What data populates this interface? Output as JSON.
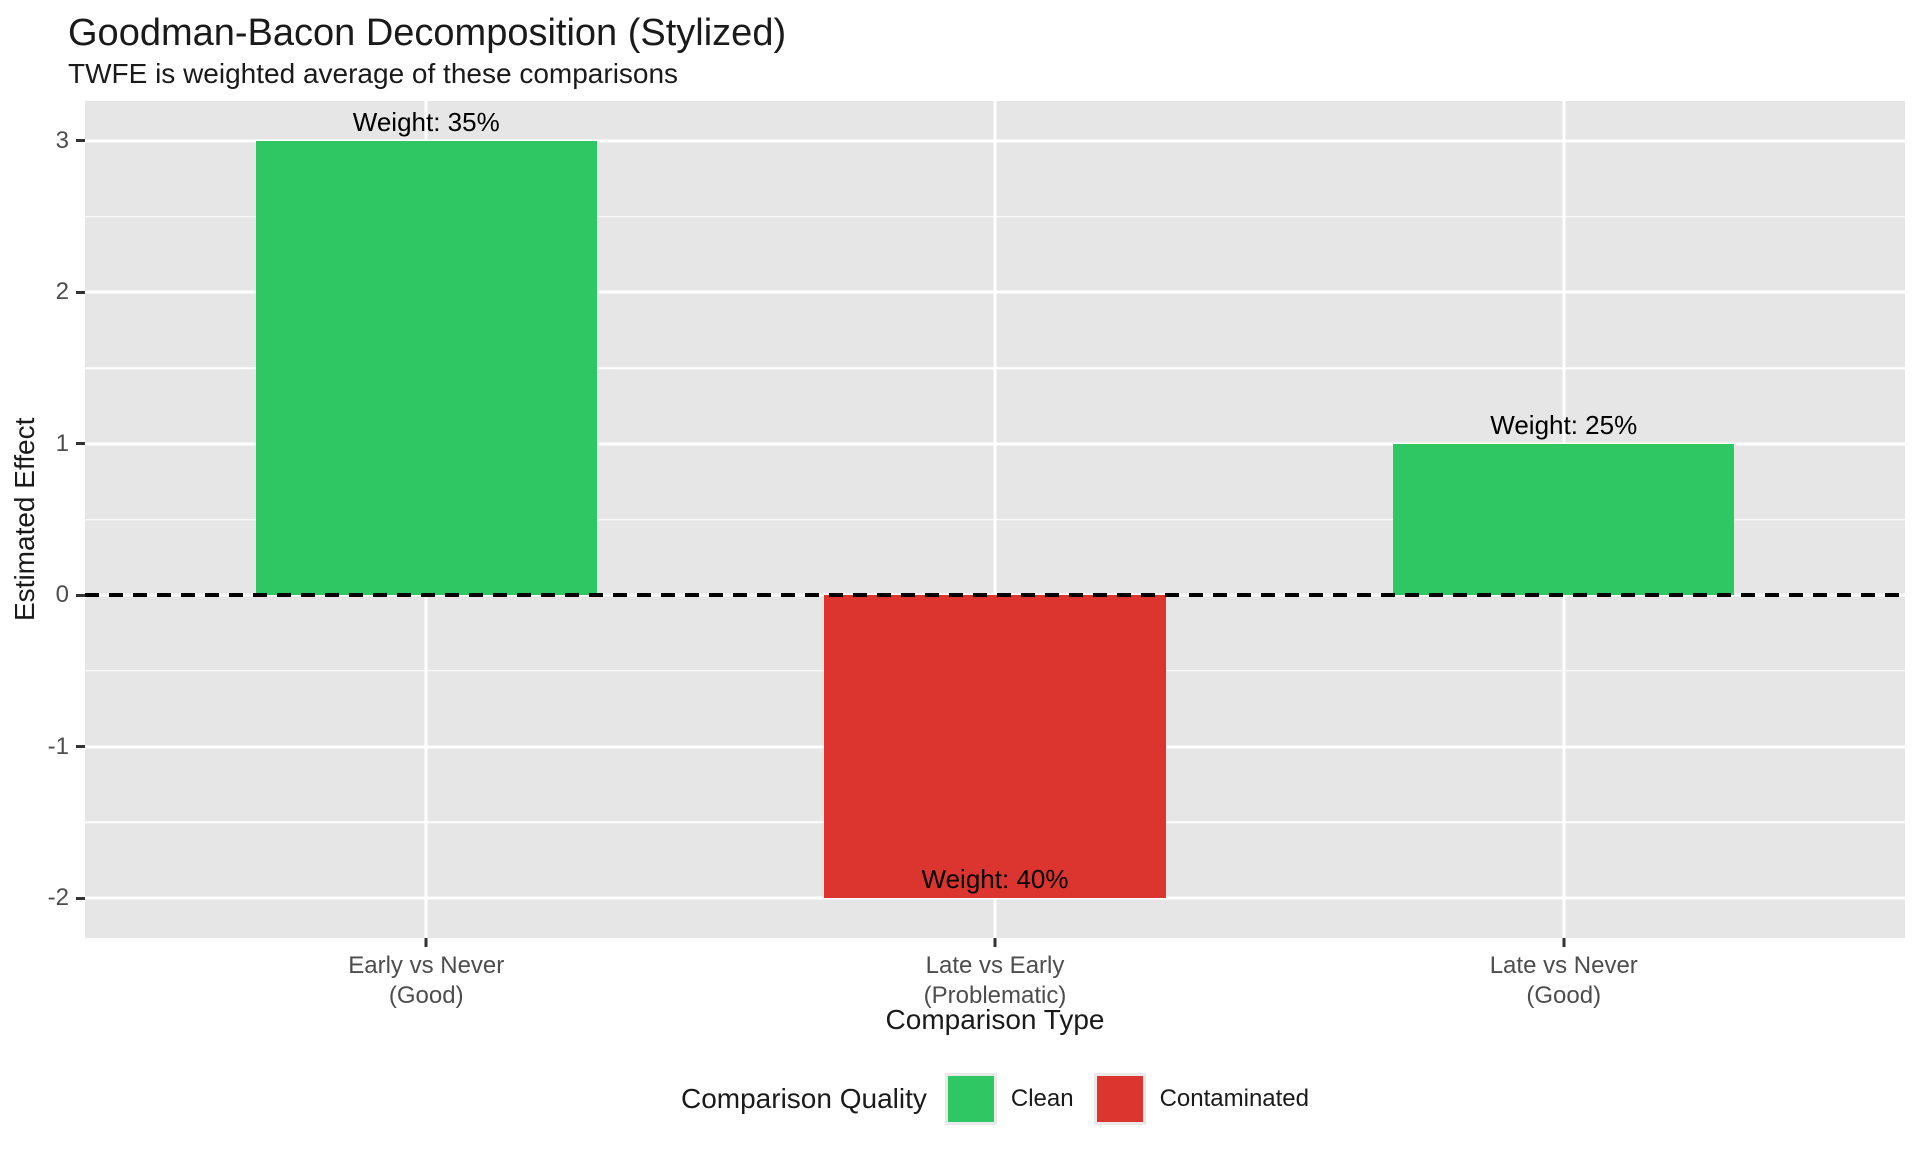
{
  "title": "Goodman-Bacon Decomposition (Stylized)",
  "subtitle": "TWFE is weighted average of these comparisons",
  "axes": {
    "y_label": "Estimated Effect",
    "x_label": "Comparison Type",
    "y_ticks": [
      "3",
      "2",
      "1",
      "0",
      "-1",
      "-2"
    ],
    "x_categories": [
      {
        "line1": "Early vs Never",
        "line2": "(Good)"
      },
      {
        "line1": "Late vs Early",
        "line2": "(Problematic)"
      },
      {
        "line1": "Late vs Never",
        "line2": "(Good)"
      }
    ]
  },
  "legend": {
    "title": "Comparison Quality",
    "items": [
      {
        "label": "Clean",
        "color": "#2EC764"
      },
      {
        "label": "Contaminated",
        "color": "#DC3530"
      }
    ]
  },
  "colors": {
    "clean": "#2EC764",
    "contaminated": "#DC3530",
    "panel_background": "#E6E6E6",
    "gridline": "#FFFFFF",
    "axis_text": "#4D4D4D",
    "reference_line": "#000000"
  },
  "chart_data": {
    "type": "bar",
    "title": "Goodman-Bacon Decomposition (Stylized)",
    "subtitle": "TWFE is weighted average of these comparisons",
    "xlabel": "Comparison Type",
    "ylabel": "Estimated Effect",
    "categories": [
      "Early vs Never (Good)",
      "Late vs Early (Problematic)",
      "Late vs Never (Good)"
    ],
    "values": [
      3,
      -2,
      1
    ],
    "bar_labels": [
      "Weight: 35%",
      "Weight: 40%",
      "Weight: 25%"
    ],
    "weights_pct": [
      35,
      40,
      25
    ],
    "groups": [
      "Clean",
      "Contaminated",
      "Clean"
    ],
    "ylim": [
      -2.2625,
      3.2625
    ],
    "y_major_ticks": [
      3,
      2,
      1,
      0,
      -1,
      -2
    ],
    "y_minor_ticks": [
      2.5,
      1.5,
      0.5,
      -0.5,
      -1.5
    ],
    "reference_line_y": 0,
    "bar_width_fraction": 0.6,
    "grid": true,
    "legend_position": "bottom"
  }
}
